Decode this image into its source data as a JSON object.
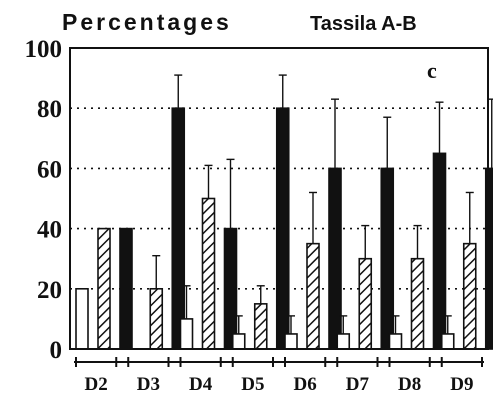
{
  "chart_data": {
    "type": "bar",
    "title_left": "Percentages",
    "title_right": "Tassila  A-B",
    "panel_label": "c",
    "categories": [
      "D2",
      "D3",
      "D4",
      "D5",
      "D6",
      "D7",
      "D8",
      "D9"
    ],
    "ylim": [
      0,
      100
    ],
    "yticks": [
      0,
      20,
      40,
      60,
      80,
      100
    ],
    "grid": "dotted horizontal",
    "series": [
      {
        "style": "open",
        "values": [
          20,
          0,
          10,
          5,
          5,
          5,
          5,
          5
        ],
        "errors": [
          0,
          0,
          11,
          6,
          6,
          6,
          6,
          6
        ]
      },
      {
        "style": "hatched",
        "values": [
          40,
          20,
          50,
          15,
          35,
          30,
          30,
          35
        ],
        "errors": [
          0,
          11,
          11,
          6,
          17,
          11,
          11,
          17
        ]
      },
      {
        "style": "solid",
        "values": [
          40,
          80,
          40,
          80,
          60,
          60,
          65,
          60
        ],
        "errors": [
          0,
          11,
          23,
          11,
          23,
          17,
          17,
          23
        ]
      }
    ],
    "colors": {
      "ink": "#111111",
      "background": "#ffffff"
    }
  }
}
